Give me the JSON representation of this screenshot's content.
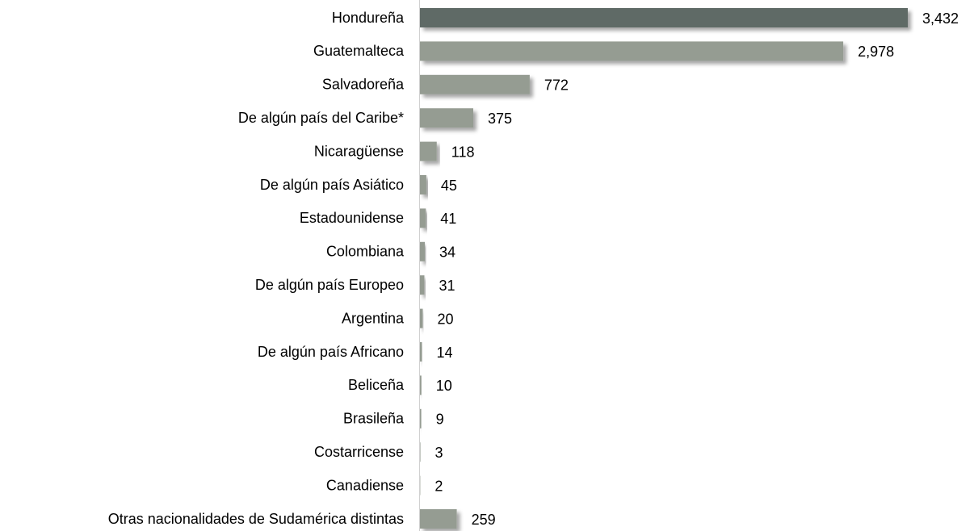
{
  "chart_data": {
    "type": "bar",
    "orientation": "horizontal",
    "categories": [
      "Hondureña",
      "Guatemalteca",
      "Salvadoreña",
      "De algún país del Caribe*",
      "Nicaragüense",
      "De algún país Asiático",
      "Estadounidense",
      "Colombiana",
      "De algún país Europeo",
      "Argentina",
      "De algún país Africano",
      "Beliceña",
      "Brasileña",
      "Costarricense",
      "Canadiense",
      "Otras nacionalidades de Sudamérica distintas"
    ],
    "values": [
      3432,
      2978,
      772,
      375,
      118,
      45,
      41,
      34,
      31,
      20,
      14,
      10,
      9,
      3,
      2,
      259
    ],
    "value_labels": [
      "3,432",
      "2,978",
      "772",
      "375",
      "118",
      "45",
      "41",
      "34",
      "31",
      "20",
      "14",
      "10",
      "9",
      "3",
      "2",
      "259"
    ],
    "colors": [
      "#5f6b66",
      "#959c92",
      "#959c92",
      "#959c92",
      "#959c92",
      "#959c92",
      "#959c92",
      "#959c92",
      "#959c92",
      "#959c92",
      "#959c92",
      "#959c92",
      "#959c92",
      "#959c92",
      "#959c92",
      "#959c92"
    ]
  }
}
